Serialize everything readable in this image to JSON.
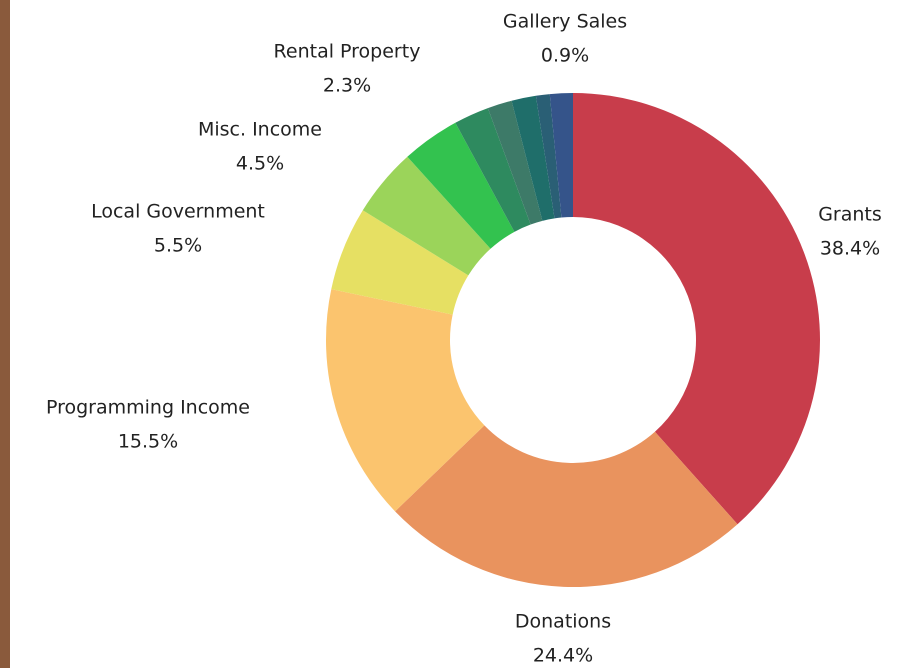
{
  "chart_data": {
    "type": "donut",
    "categories": [
      "Grants",
      "Donations",
      "Programming Income",
      "Local Government",
      "Misc. Income",
      null,
      "Rental Property",
      null,
      null,
      "Gallery Sales",
      null
    ],
    "values": [
      38.4,
      24.4,
      15.5,
      5.5,
      4.5,
      3.8,
      2.3,
      1.6,
      1.6,
      0.9,
      1.5
    ],
    "value_labels": [
      "38.4%",
      "24.4%",
      "15.5%",
      "5.5%",
      "4.5%",
      null,
      "2.3%",
      null,
      null,
      "0.9%",
      null
    ],
    "colors": [
      "#c83d4b",
      "#e9935e",
      "#fbc46e",
      "#e6e063",
      "#9bd45a",
      "#33c24f",
      "#2e8a5f",
      "#3d7a68",
      "#1f6e6a",
      "#2a5f75",
      "#35548a"
    ]
  }
}
